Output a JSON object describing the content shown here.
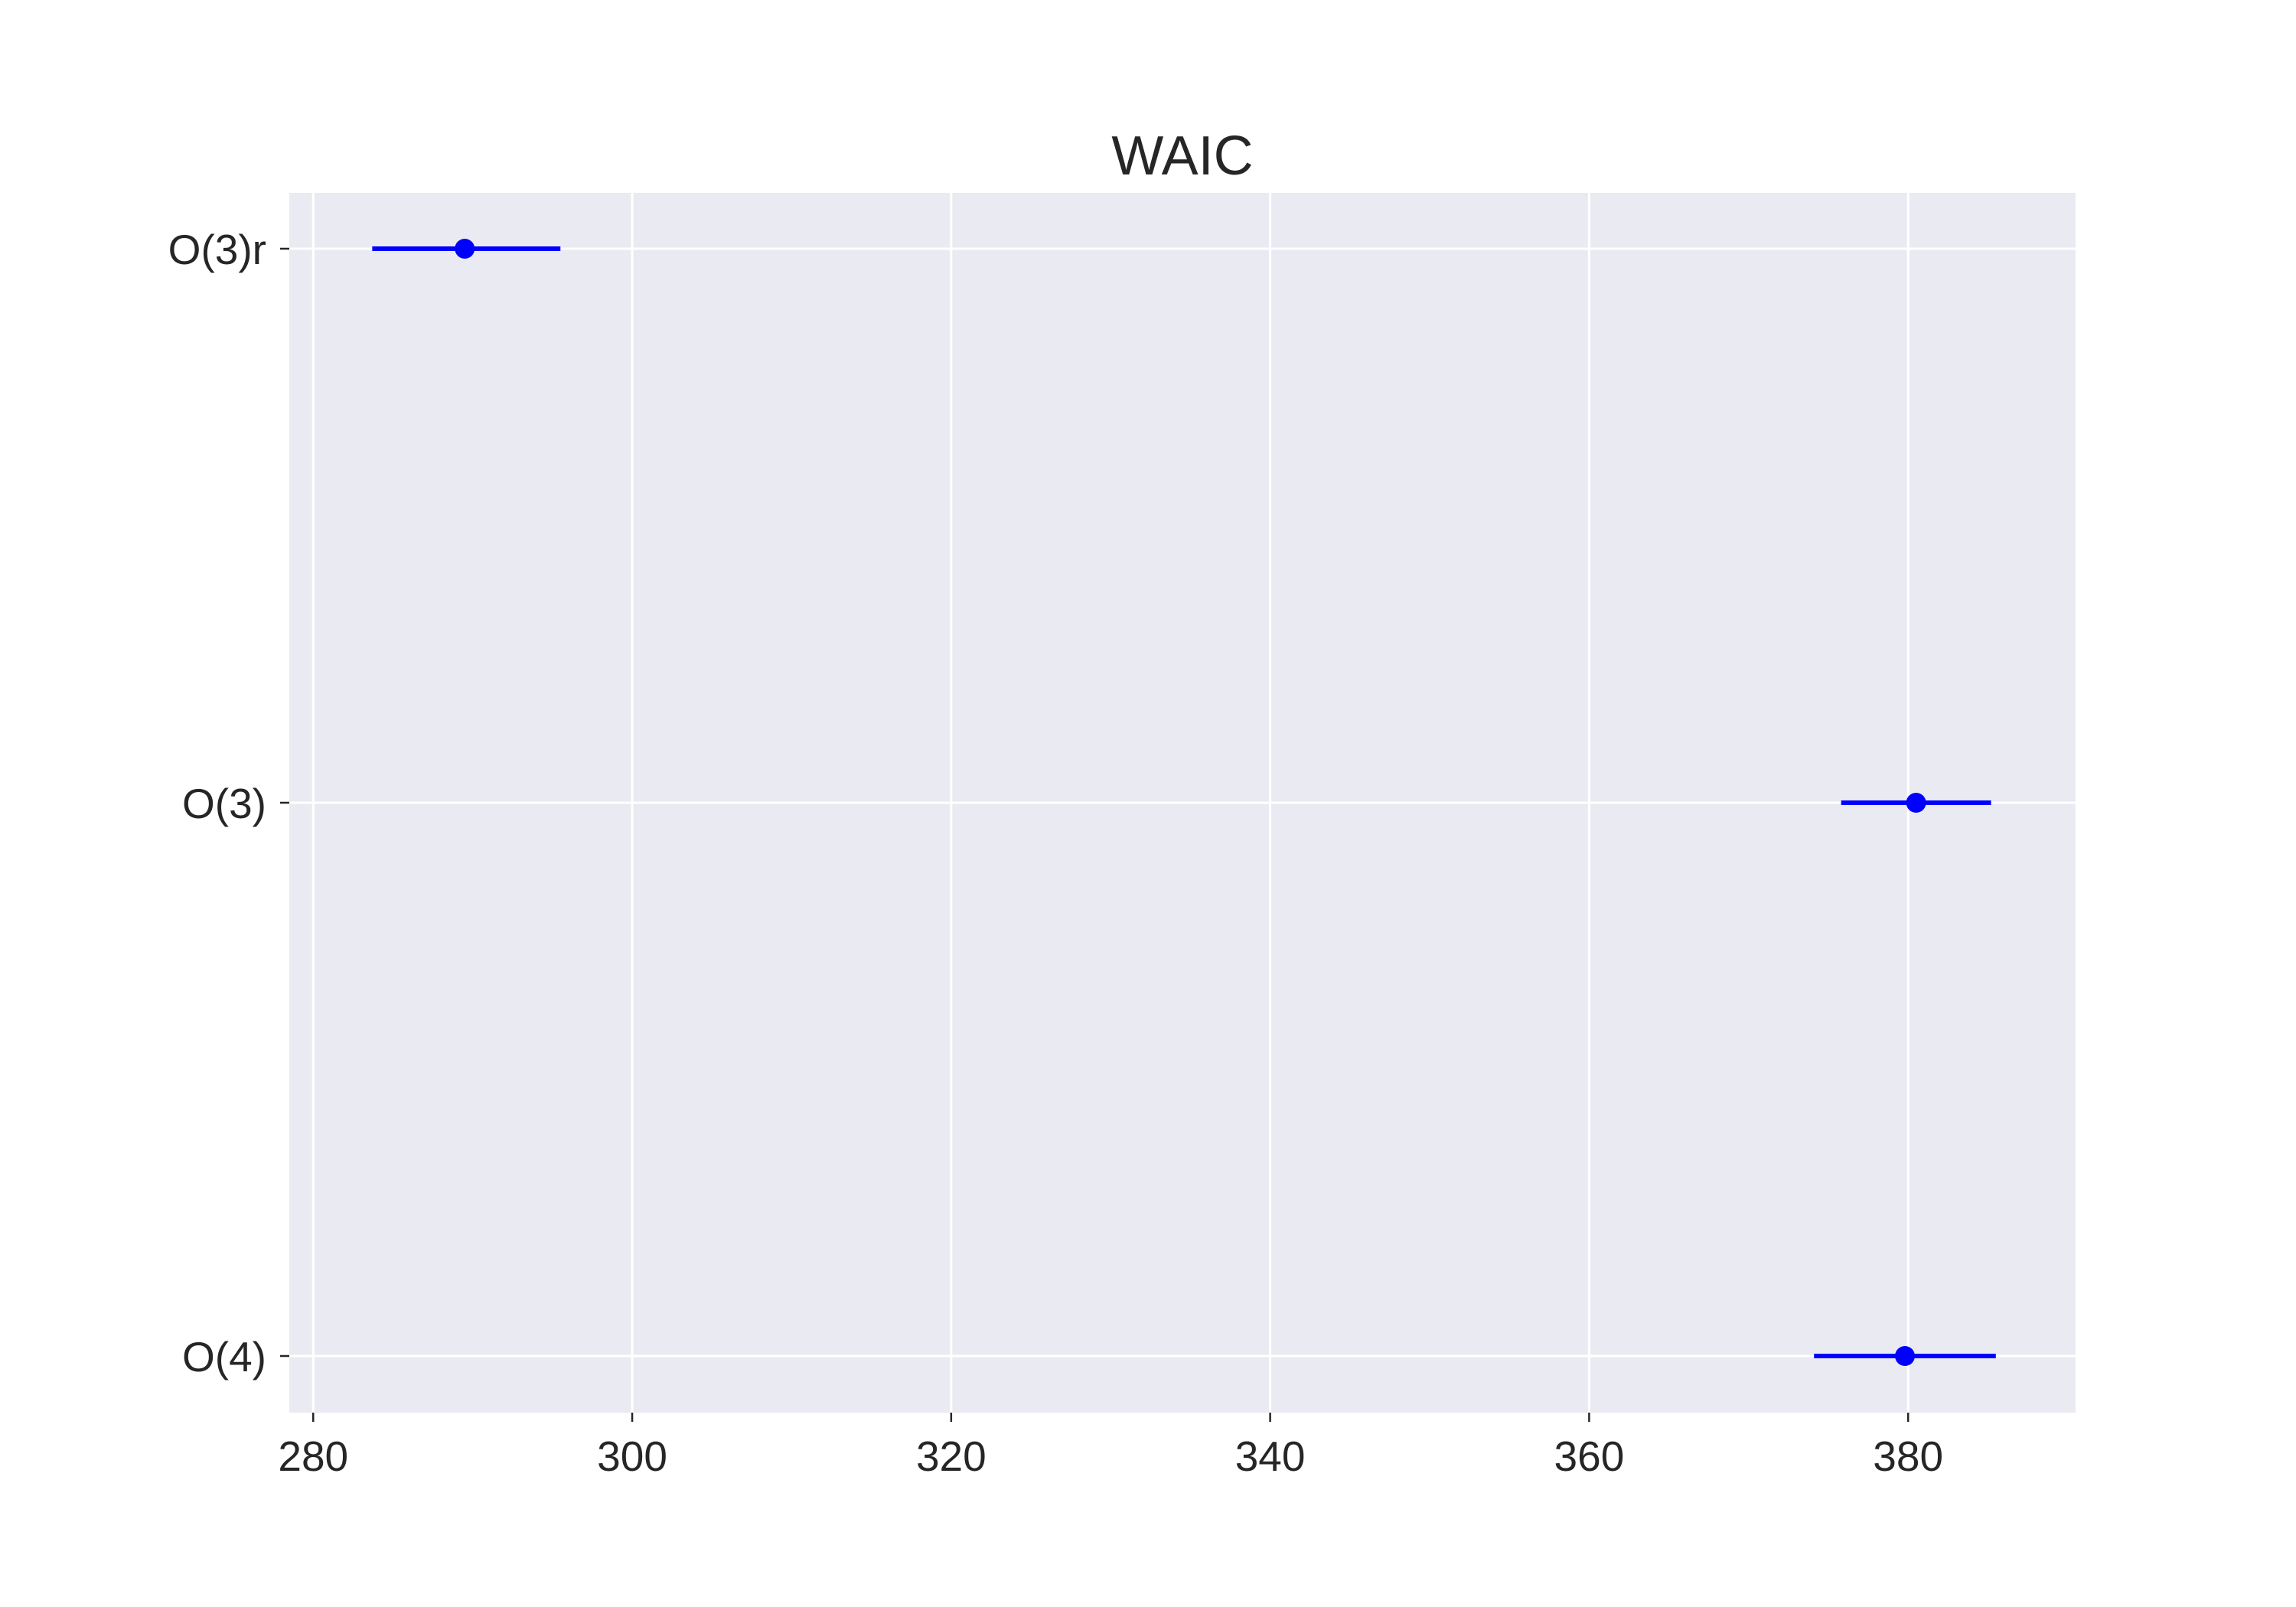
{
  "chart_data": {
    "type": "scatter",
    "title": "WAIC",
    "xlabel": "",
    "ylabel": "",
    "xlim": [
      278.5,
      390.5
    ],
    "xticks": [
      "280",
      "300",
      "320",
      "340",
      "360",
      "380"
    ],
    "categories": [
      "O(3)r",
      "O(3)",
      "O(4)"
    ],
    "points": [
      {
        "label": "O(3)r",
        "value": 289.5,
        "lower": 283.7,
        "upper": 295.5
      },
      {
        "label": "O(3)",
        "value": 380.5,
        "lower": 375.8,
        "upper": 385.2
      },
      {
        "label": "O(4)",
        "value": 379.8,
        "lower": 374.1,
        "upper": 385.5
      }
    ],
    "grid": true,
    "colors": {
      "marker": "#0000ff",
      "background": "#eaeaf2",
      "grid": "#ffffff"
    }
  }
}
